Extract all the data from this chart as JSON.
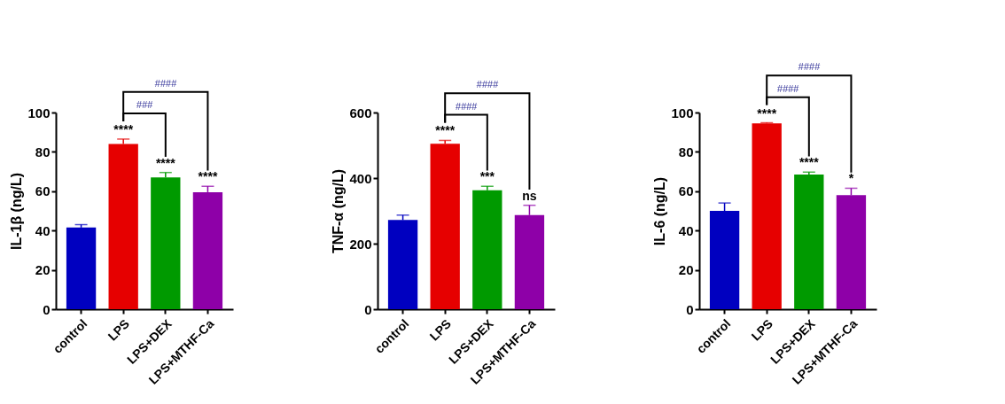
{
  "chart_data": [
    {
      "type": "bar",
      "ylabel": "IL-1β (ng/L)",
      "categories": [
        "control",
        "LPS",
        "LPS+DEX",
        "LPS+MTHF-Ca"
      ],
      "values": [
        41.5,
        84,
        67,
        59.5
      ],
      "errors": [
        1.5,
        2.5,
        2.5,
        3
      ],
      "colors": [
        "#0000c0",
        "#e60000",
        "#009a00",
        "#8e00a8"
      ],
      "ylim": [
        0,
        100
      ],
      "yticks": [
        0,
        20,
        40,
        60,
        80,
        100
      ],
      "grid": false,
      "value_labels": [
        null,
        "****",
        "****",
        "****"
      ],
      "annotations": [
        "###",
        "####"
      ]
    },
    {
      "type": "bar",
      "ylabel": "TNF-α (ng/L)",
      "categories": [
        "control",
        "LPS",
        "LPS+DEX",
        "LPS+MTHF-Ca"
      ],
      "values": [
        272,
        505,
        363,
        287
      ],
      "errors": [
        15,
        10,
        12,
        30
      ],
      "colors": [
        "#0000c0",
        "#e60000",
        "#009a00",
        "#8e00a8"
      ],
      "ylim": [
        0,
        600
      ],
      "yticks": [
        0,
        200,
        400,
        600
      ],
      "grid": false,
      "value_labels": [
        null,
        "****",
        "***",
        "ns"
      ],
      "annotations": [
        "####",
        "####"
      ]
    },
    {
      "type": "bar",
      "ylabel": "IL-6 (ng/L)",
      "categories": [
        "control",
        "LPS",
        "LPS+DEX",
        "LPS+MTHF-Ca"
      ],
      "values": [
        50,
        94.5,
        68.5,
        58
      ],
      "errors": [
        4,
        0.3,
        1.2,
        3.5
      ],
      "colors": [
        "#0000c0",
        "#e60000",
        "#009a00",
        "#8e00a8"
      ],
      "ylim": [
        0,
        100
      ],
      "yticks": [
        0,
        20,
        40,
        60,
        80,
        100
      ],
      "grid": false,
      "value_labels": [
        null,
        "****",
        "****",
        "*"
      ],
      "annotations": [
        "####",
        "####"
      ]
    }
  ]
}
